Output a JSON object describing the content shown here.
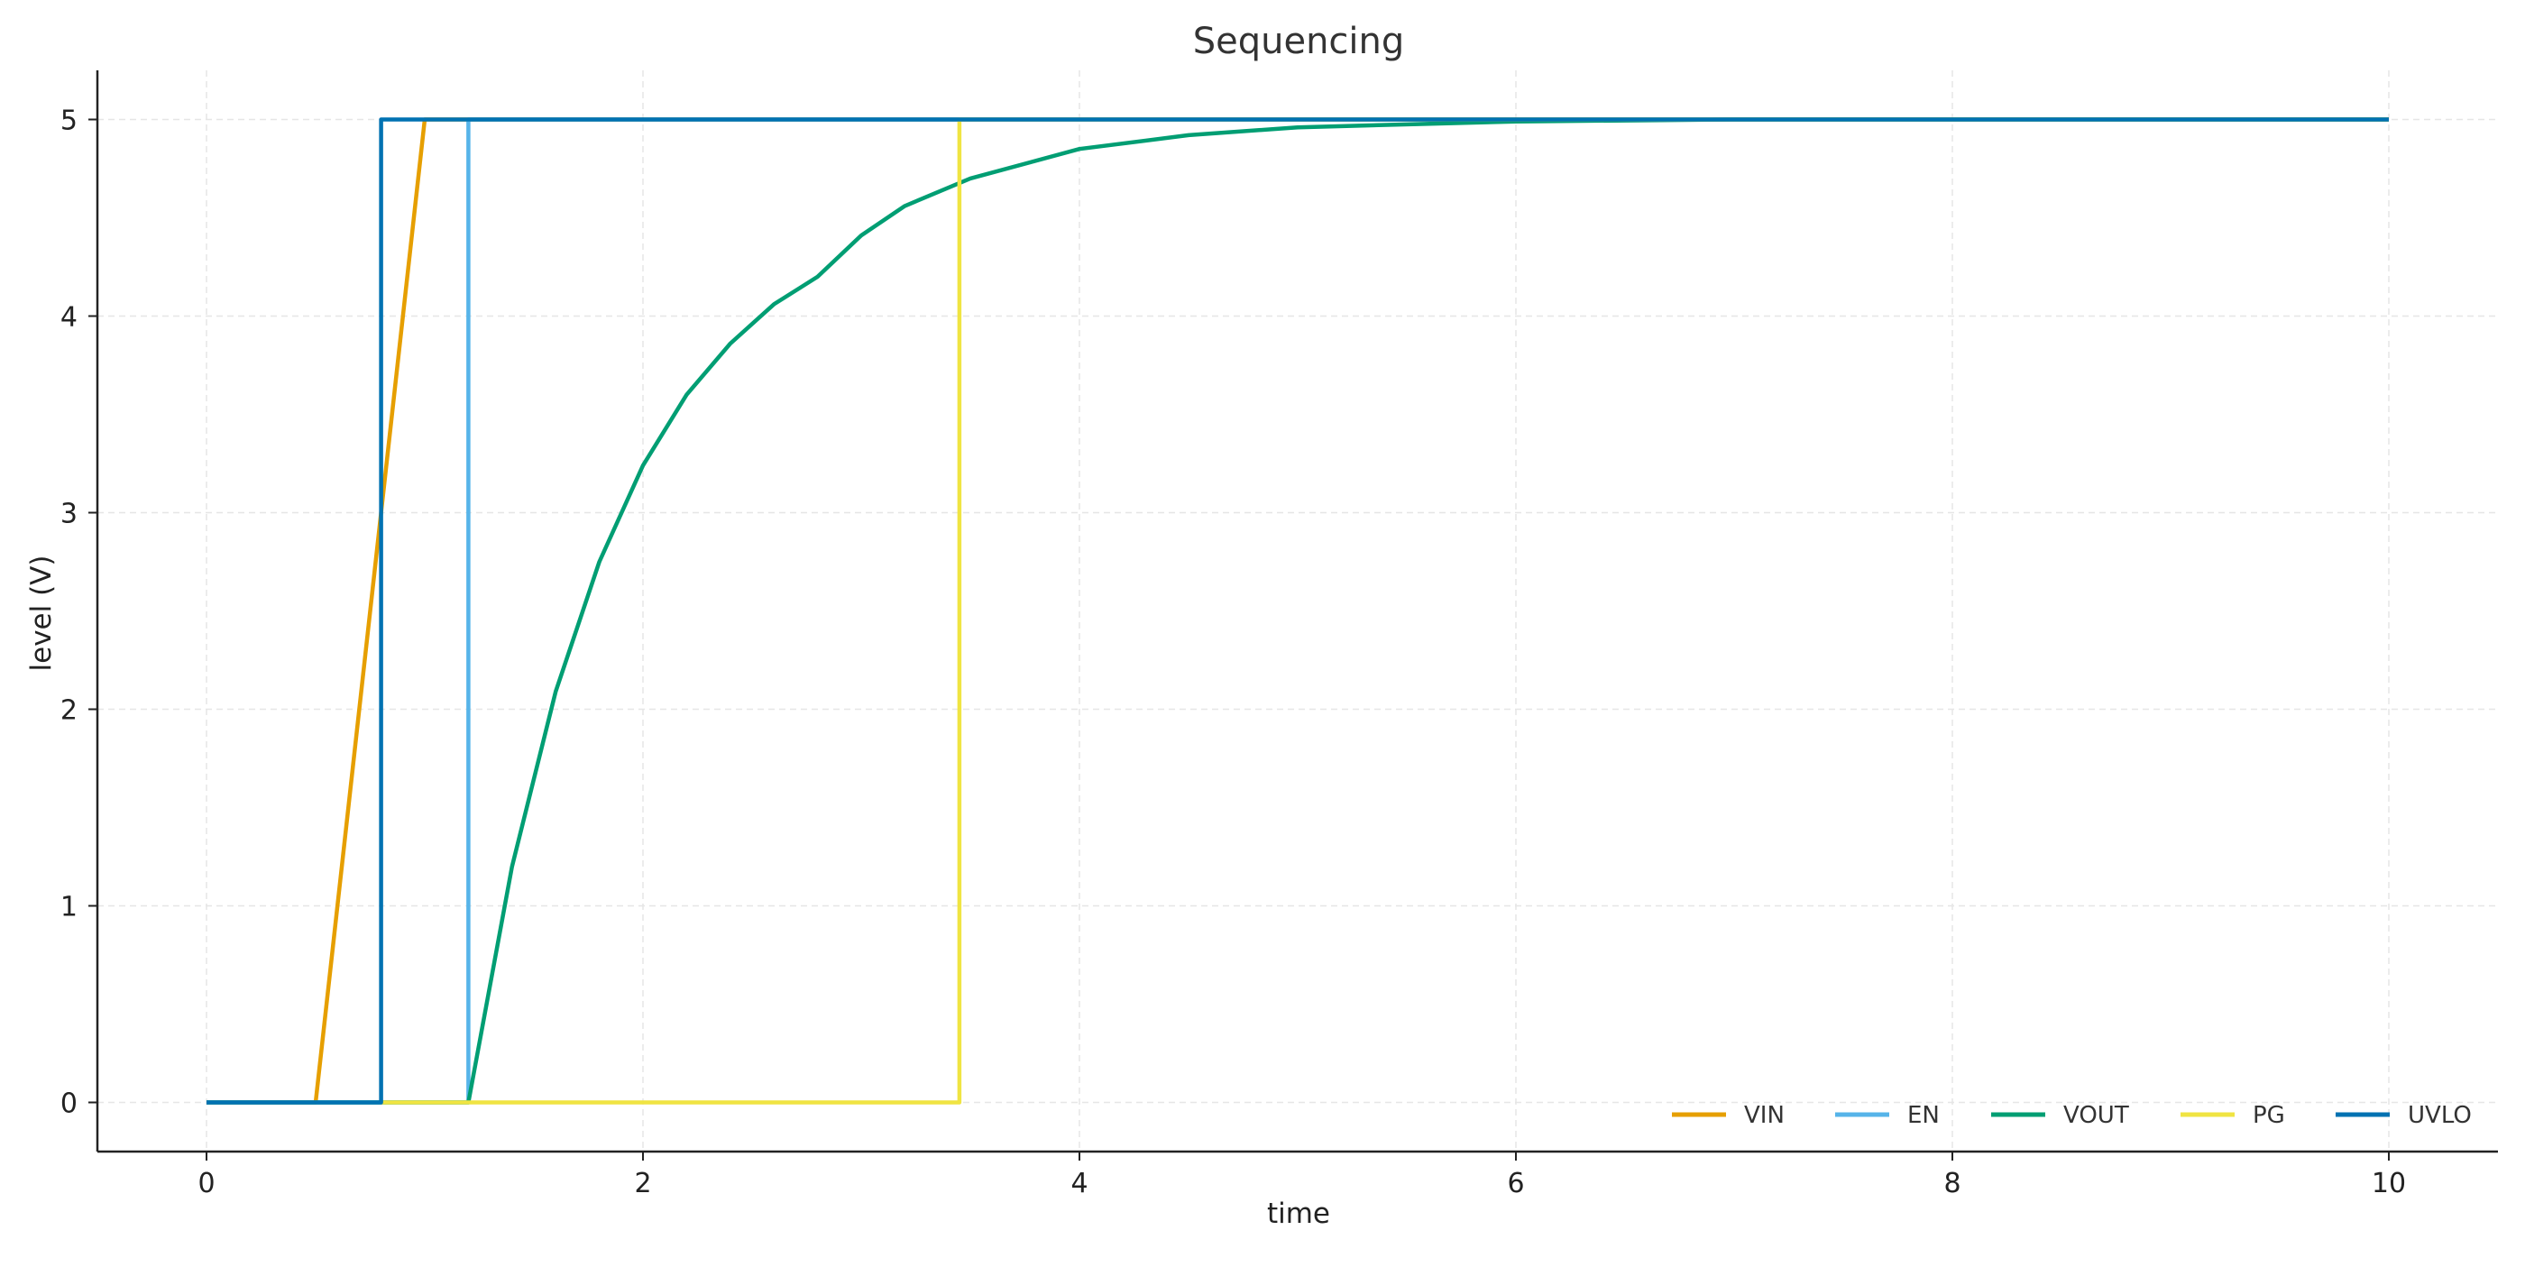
{
  "chart_data": {
    "type": "line",
    "title": "Sequencing",
    "xlabel": "time",
    "ylabel": "level (V)",
    "xlim": [
      -0.5,
      10.5
    ],
    "ylim": [
      -0.25,
      5.25
    ],
    "xticks": [
      0,
      2,
      4,
      6,
      8,
      10
    ],
    "yticks": [
      0,
      1,
      2,
      3,
      4,
      5
    ],
    "grid": true,
    "legend_position": "bottom-right",
    "series": [
      {
        "name": "VIN",
        "color": "#E69F00",
        "points": [
          [
            0,
            0
          ],
          [
            0.5,
            0
          ],
          [
            1.0,
            5
          ],
          [
            10,
            5
          ]
        ]
      },
      {
        "name": "EN",
        "color": "#56B4E9",
        "points": [
          [
            0,
            0
          ],
          [
            1.2,
            0
          ],
          [
            1.2,
            5
          ],
          [
            10,
            5
          ]
        ]
      },
      {
        "name": "VOUT",
        "color": "#009E73",
        "points": [
          [
            0,
            0
          ],
          [
            1.2,
            0
          ],
          [
            1.4,
            1.2
          ],
          [
            1.6,
            2.09
          ],
          [
            1.8,
            2.75
          ],
          [
            2.0,
            3.24
          ],
          [
            2.2,
            3.6
          ],
          [
            2.4,
            3.86
          ],
          [
            2.6,
            4.06
          ],
          [
            2.8,
            4.2
          ],
          [
            3.0,
            4.41
          ],
          [
            3.2,
            4.56
          ],
          [
            3.5,
            4.7
          ],
          [
            4.0,
            4.85
          ],
          [
            4.5,
            4.92
          ],
          [
            5.0,
            4.96
          ],
          [
            6.0,
            4.99
          ],
          [
            7.0,
            5
          ],
          [
            10,
            5
          ]
        ]
      },
      {
        "name": "PG",
        "color": "#F0E442",
        "points": [
          [
            0.8,
            0
          ],
          [
            3.45,
            0
          ],
          [
            3.45,
            5
          ],
          [
            10,
            5
          ]
        ]
      },
      {
        "name": "UVLO",
        "color": "#0072B2",
        "points": [
          [
            0,
            0
          ],
          [
            0.8,
            0
          ],
          [
            0.8,
            5
          ],
          [
            10,
            5
          ]
        ]
      }
    ]
  }
}
